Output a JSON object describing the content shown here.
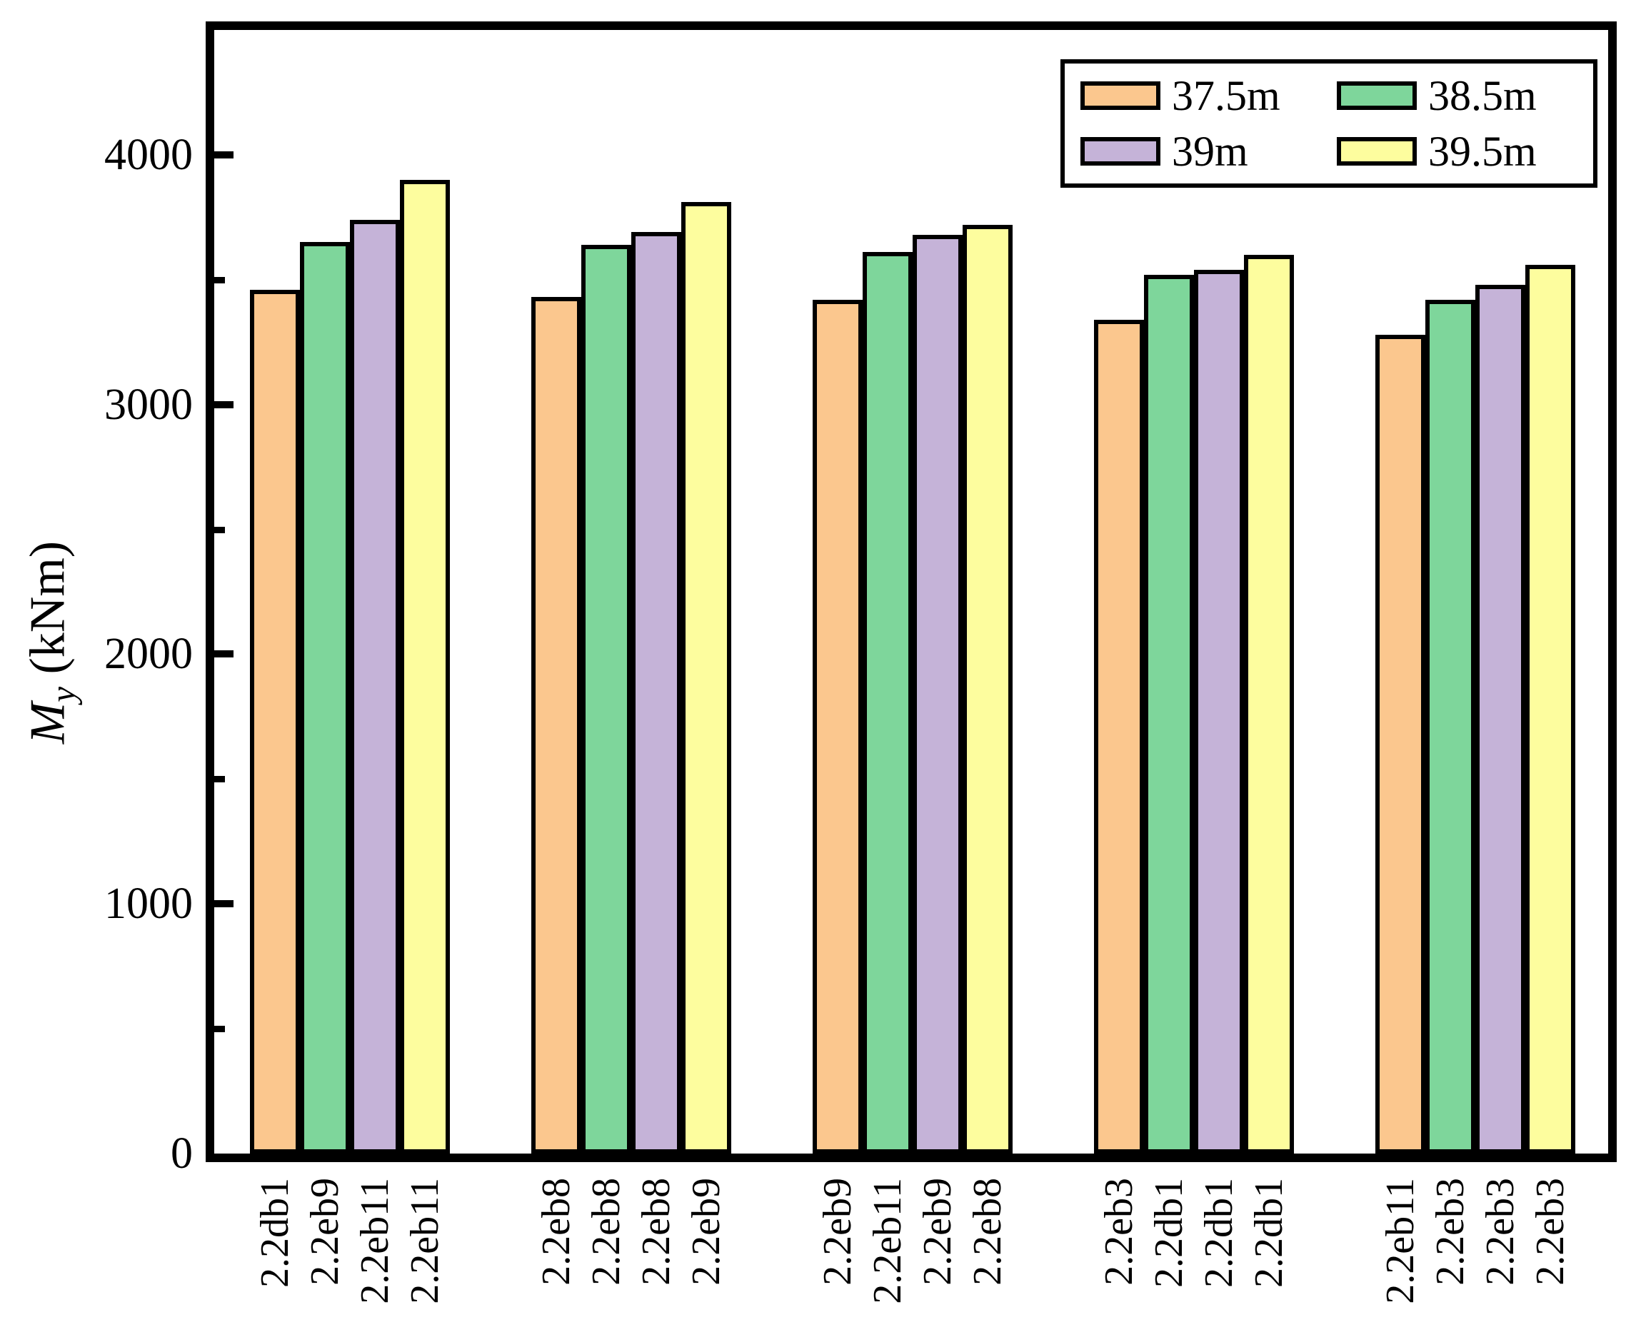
{
  "chart_data": {
    "type": "bar",
    "title": "",
    "ylabel": "My (kNm)",
    "ylabel_main": "M",
    "ylabel_sub": "y",
    "ylabel_units": " (kNm)",
    "ylim": [
      0,
      4500
    ],
    "yticks_major": [
      0,
      1000,
      2000,
      3000,
      4000
    ],
    "yticks_minor": [
      500,
      1500,
      2500,
      3500
    ],
    "grid": false,
    "legend_position": "top-right",
    "series": [
      {
        "name": "37.5m",
        "color": "#FBC78E",
        "values": [
          3460,
          3430,
          3420,
          3340,
          3280
        ]
      },
      {
        "name": "38.5m",
        "color": "#7ED69B",
        "values": [
          3650,
          3640,
          3610,
          3520,
          3420
        ]
      },
      {
        "name": "39m",
        "color": "#C5B3D8",
        "values": [
          3740,
          3690,
          3680,
          3540,
          3480
        ]
      },
      {
        "name": "39.5m",
        "color": "#FDFD9E",
        "values": [
          3900,
          3810,
          3720,
          3600,
          3560
        ]
      }
    ],
    "group_bar_labels": [
      [
        "2.2db1",
        "2.2eb9",
        "2.2eb11",
        "2.2eb11"
      ],
      [
        "2.2eb8",
        "2.2eb8",
        "2.2eb8",
        "2.2eb9"
      ],
      [
        "2.2eb9",
        "2.2eb11",
        "2.2eb9",
        "2.2eb8"
      ],
      [
        "2.2eb3",
        "2.2db1",
        "2.2db1",
        "2.2db1"
      ],
      [
        "2.2eb11",
        "2.2eb3",
        "2.2eb3",
        "2.2eb3"
      ]
    ]
  }
}
